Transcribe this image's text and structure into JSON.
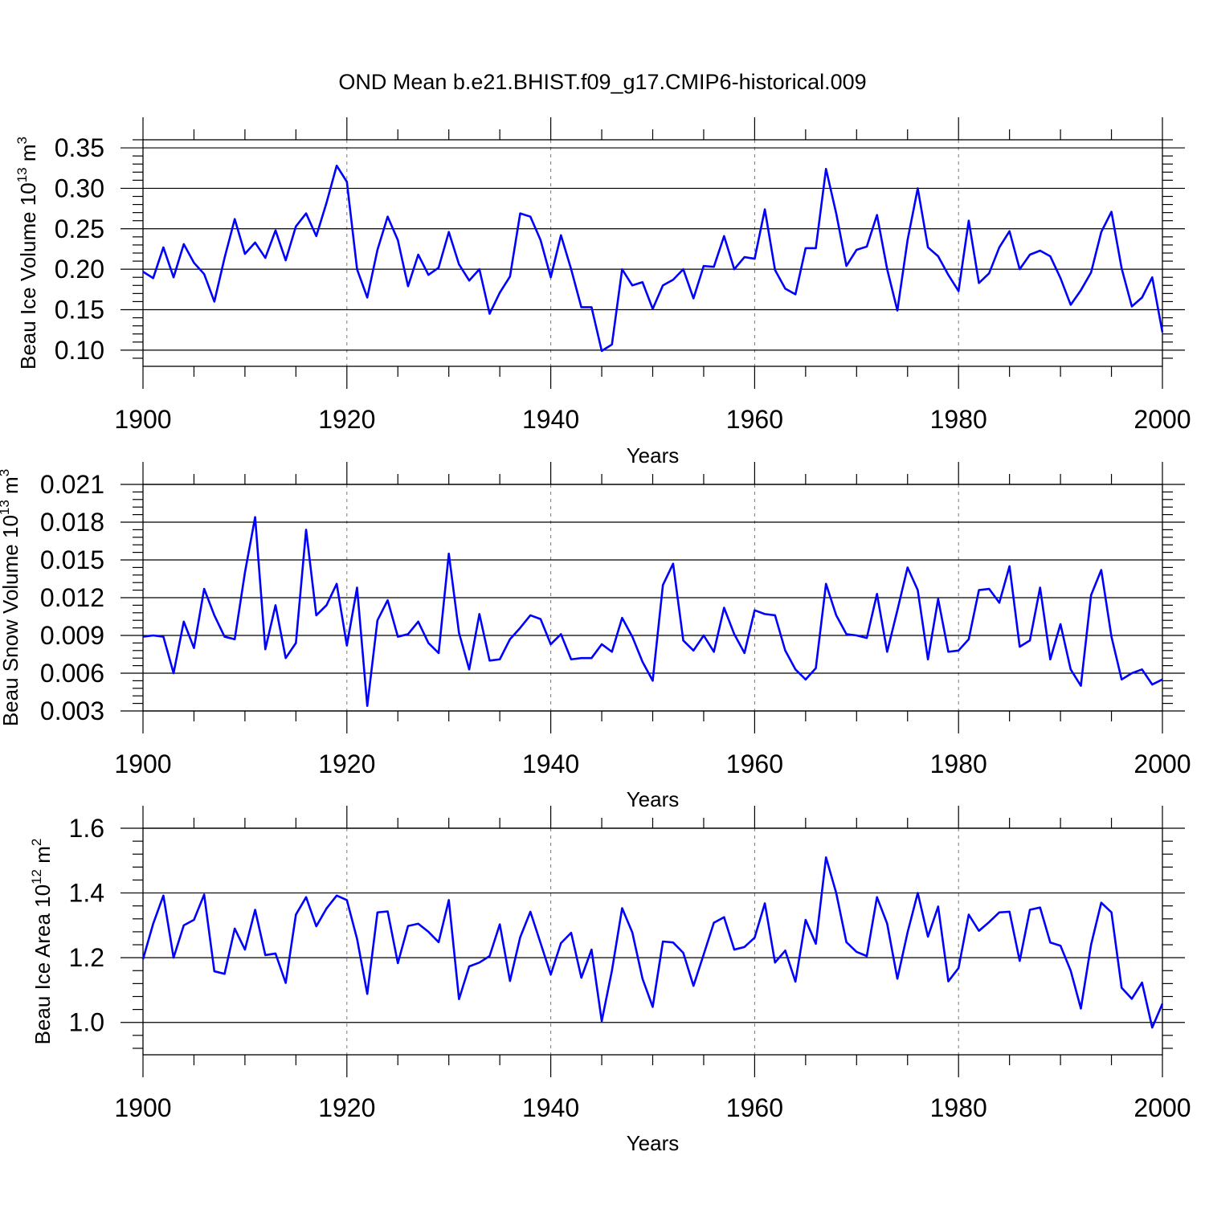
{
  "figure_title": "OND Mean b.e21.BHIST.f09_g17.CMIP6-historical.009",
  "colors": {
    "series": "#0000ff",
    "axis": "#000000",
    "grid": "#777777"
  },
  "chart_data": [
    {
      "type": "line",
      "title": "",
      "xlabel": "Years",
      "ylabel": {
        "prefix": "Beau Ice Volume 10",
        "exponent": "13",
        "unit": " m",
        "unit_exponent": "3"
      },
      "xlim": [
        1900,
        2000
      ],
      "ylim": [
        0.08,
        0.36
      ],
      "xticks": [
        "1900",
        "1920",
        "1940",
        "1960",
        "1980",
        "2000"
      ],
      "yticks": [
        "0.10",
        "0.15",
        "0.20",
        "0.25",
        "0.30",
        "0.35"
      ],
      "ytick_values": [
        0.1,
        0.15,
        0.2,
        0.25,
        0.3,
        0.35
      ],
      "x_start": 1900,
      "series": [
        {
          "name": "Beau Ice Volume",
          "values": [
            0.197,
            0.189,
            0.227,
            0.19,
            0.231,
            0.208,
            0.194,
            0.16,
            0.214,
            0.262,
            0.219,
            0.233,
            0.214,
            0.248,
            0.211,
            0.253,
            0.269,
            0.241,
            0.282,
            0.328,
            0.308,
            0.2,
            0.165,
            0.224,
            0.265,
            0.236,
            0.179,
            0.218,
            0.193,
            0.202,
            0.246,
            0.206,
            0.186,
            0.2,
            0.145,
            0.171,
            0.191,
            0.269,
            0.265,
            0.236,
            0.19,
            0.242,
            0.2,
            0.153,
            0.153,
            0.099,
            0.107,
            0.2,
            0.18,
            0.184,
            0.151,
            0.18,
            0.187,
            0.2,
            0.164,
            0.204,
            0.203,
            0.241,
            0.2,
            0.215,
            0.213,
            0.274,
            0.199,
            0.176,
            0.169,
            0.226,
            0.226,
            0.324,
            0.269,
            0.204,
            0.224,
            0.228,
            0.267,
            0.2,
            0.149,
            0.236,
            0.3,
            0.227,
            0.216,
            0.193,
            0.173,
            0.26,
            0.183,
            0.195,
            0.227,
            0.247,
            0.2,
            0.218,
            0.223,
            0.216,
            0.189,
            0.156,
            0.174,
            0.196,
            0.246,
            0.271,
            0.201,
            0.154,
            0.165,
            0.19,
            0.122
          ]
        }
      ]
    },
    {
      "type": "line",
      "title": "",
      "xlabel": "Years",
      "ylabel": {
        "prefix": "Beau Snow Volume 10",
        "exponent": "13",
        "unit": " m",
        "unit_exponent": "3"
      },
      "xlim": [
        1900,
        2000
      ],
      "ylim": [
        0.003,
        0.021
      ],
      "xticks": [
        "1900",
        "1920",
        "1940",
        "1960",
        "1980",
        "2000"
      ],
      "yticks": [
        "0.003",
        "0.006",
        "0.009",
        "0.012",
        "0.015",
        "0.018",
        "0.021"
      ],
      "ytick_values": [
        0.003,
        0.006,
        0.009,
        0.012,
        0.015,
        0.018,
        0.021
      ],
      "x_start": 1900,
      "series": [
        {
          "name": "Beau Snow Volume",
          "values": [
            0.0089,
            0.009,
            0.0089,
            0.006,
            0.0101,
            0.008,
            0.0127,
            0.0106,
            0.0089,
            0.0087,
            0.014,
            0.0184,
            0.0079,
            0.0114,
            0.0072,
            0.0084,
            0.0174,
            0.0106,
            0.0114,
            0.0131,
            0.0082,
            0.0128,
            0.0034,
            0.0102,
            0.0118,
            0.0089,
            0.0091,
            0.0101,
            0.0084,
            0.0076,
            0.0155,
            0.0092,
            0.0063,
            0.0107,
            0.007,
            0.0071,
            0.0087,
            0.0096,
            0.0106,
            0.0103,
            0.0083,
            0.0091,
            0.0071,
            0.0072,
            0.0072,
            0.0083,
            0.0077,
            0.0104,
            0.0089,
            0.0069,
            0.0054,
            0.013,
            0.0147,
            0.0086,
            0.0078,
            0.009,
            0.0077,
            0.0112,
            0.0091,
            0.0076,
            0.011,
            0.0107,
            0.0106,
            0.0078,
            0.0063,
            0.0055,
            0.0064,
            0.0131,
            0.0106,
            0.0091,
            0.009,
            0.0088,
            0.0123,
            0.0077,
            0.011,
            0.0144,
            0.0126,
            0.0071,
            0.0119,
            0.0077,
            0.0078,
            0.0087,
            0.0126,
            0.0127,
            0.0116,
            0.0145,
            0.0081,
            0.0086,
            0.0128,
            0.0071,
            0.0099,
            0.0063,
            0.005,
            0.0122,
            0.0142,
            0.0089,
            0.0055,
            0.006,
            0.0063,
            0.0051,
            0.0055
          ]
        }
      ]
    },
    {
      "type": "line",
      "title": "",
      "xlabel": "Years",
      "ylabel": {
        "prefix": "Beau Ice Area 10",
        "exponent": "12",
        "unit": " m",
        "unit_exponent": "2"
      },
      "xlim": [
        1900,
        2000
      ],
      "ylim": [
        0.9,
        1.6
      ],
      "xticks": [
        "1900",
        "1920",
        "1940",
        "1960",
        "1980",
        "2000"
      ],
      "yticks": [
        "1.0",
        "1.2",
        "1.4",
        "1.6"
      ],
      "ytick_values": [
        1.0,
        1.2,
        1.4,
        1.6
      ],
      "x_start": 1900,
      "series": [
        {
          "name": "Beau Ice Area",
          "values": [
            1.195,
            1.305,
            1.392,
            1.2,
            1.3,
            1.317,
            1.395,
            1.158,
            1.15,
            1.29,
            1.225,
            1.348,
            1.208,
            1.213,
            1.122,
            1.333,
            1.387,
            1.297,
            1.352,
            1.392,
            1.378,
            1.258,
            1.088,
            1.34,
            1.343,
            1.183,
            1.298,
            1.305,
            1.28,
            1.248,
            1.378,
            1.072,
            1.173,
            1.185,
            1.205,
            1.303,
            1.128,
            1.263,
            1.342,
            1.245,
            1.148,
            1.245,
            1.277,
            1.138,
            1.225,
            1.004,
            1.16,
            1.353,
            1.278,
            1.135,
            1.048,
            1.25,
            1.247,
            1.215,
            1.113,
            1.21,
            1.308,
            1.325,
            1.225,
            1.233,
            1.262,
            1.368,
            1.185,
            1.222,
            1.126,
            1.317,
            1.243,
            1.51,
            1.4,
            1.248,
            1.218,
            1.205,
            1.387,
            1.305,
            1.135,
            1.278,
            1.4,
            1.265,
            1.358,
            1.127,
            1.168,
            1.333,
            1.283,
            1.31,
            1.34,
            1.342,
            1.19,
            1.348,
            1.355,
            1.247,
            1.237,
            1.16,
            1.043,
            1.24,
            1.37,
            1.34,
            1.107,
            1.073,
            1.123,
            0.984,
            1.058
          ]
        }
      ]
    }
  ]
}
